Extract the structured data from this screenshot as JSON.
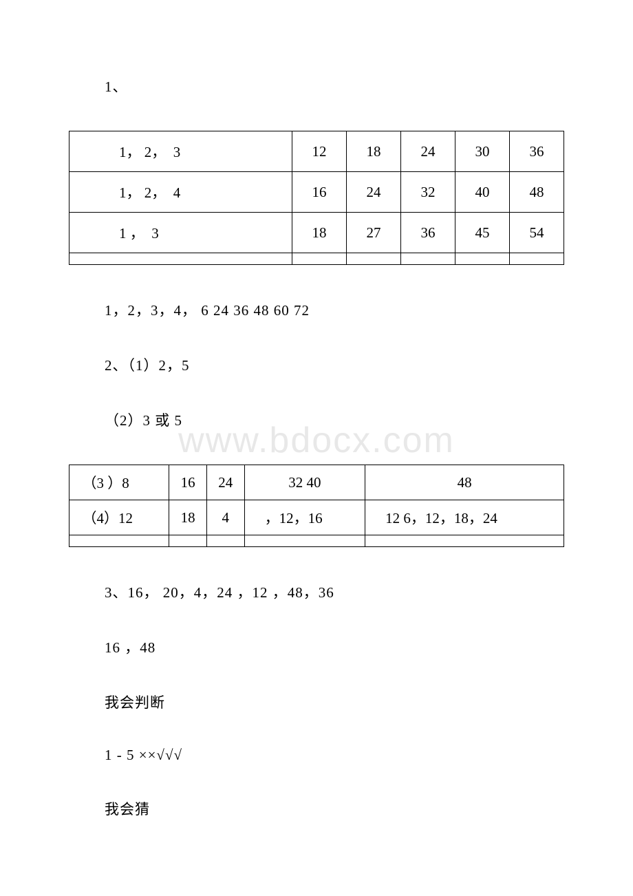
{
  "watermark": "www.bdocx.com",
  "para1": "1、",
  "table1": {
    "rows": [
      [
        "　　1， 2，　3",
        "12",
        "18",
        "24",
        "30",
        "36"
      ],
      [
        "　　1， 2，　4",
        "16",
        "24",
        "32",
        "40",
        "48"
      ],
      [
        "　　1 ，　3",
        "18",
        "27",
        "36",
        "45",
        "54"
      ],
      [
        "",
        "",
        "",
        "",
        "",
        ""
      ]
    ],
    "col_widths": [
      "16%",
      "16%",
      "17%",
      "17%",
      "17%",
      "17%"
    ]
  },
  "para2": "1，2，3，4，  6 24 36 48 60 72",
  "para3": "2、（1）2，5",
  "para4": "（2）3 或 5",
  "table2": {
    "rows": [
      [
        "　（3 ）8",
        "16",
        "24",
        "32 40",
        "48"
      ],
      [
        "　（4）12",
        "18",
        "4",
        "　，12，16",
        "　12 6，12，18，24"
      ],
      [
        "",
        "",
        "",
        "",
        ""
      ]
    ],
    "col_widths": [
      "18%",
      "17%",
      "18%",
      "23%",
      "24%"
    ]
  },
  "para5": "3、16， 20，4，24 ，12 ，48，36",
  "para6": "16 ，48",
  "para7": "我会判断",
  "para8": "1 - 5 ××√√√",
  "para9": "我会猜",
  "text_color": "#000000",
  "background_color": "#ffffff",
  "watermark_color": "#e8e8e8",
  "border_color": "#000000",
  "font_size": 21
}
